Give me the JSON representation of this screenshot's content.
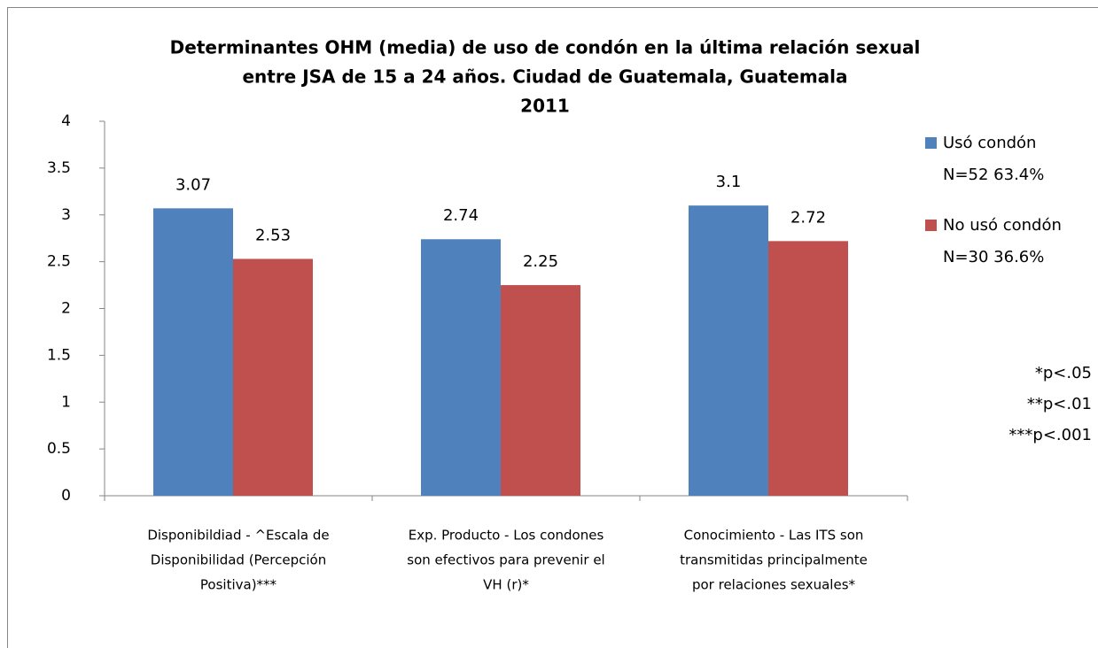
{
  "chart_data": {
    "type": "bar",
    "title": [
      "Determinantes OHM (media) de uso de condón en la última relación sexual",
      "entre JSA de 15 a 24 años. Ciudad de Guatemala, Guatemala",
      "2011"
    ],
    "categories": [
      [
        "Disponibildiad - ^Escala de",
        "Disponibilidad (Percepción",
        "Positiva)***"
      ],
      [
        "Exp. Producto - Los condones",
        "son efectivos para prevenir el",
        "VH (r)*"
      ],
      [
        "Conocimiento - Las ITS son",
        "transmitidas principalmente",
        "por relaciones sexuales*"
      ]
    ],
    "series": [
      {
        "name": [
          "Usó condón",
          "N=52 63.4%"
        ],
        "color": "#4f81bd",
        "values": [
          3.07,
          2.74,
          3.1
        ]
      },
      {
        "name": [
          "No usó condón",
          "N=30 36.6%"
        ],
        "color": "#c0504d",
        "values": [
          2.53,
          2.25,
          2.72
        ]
      }
    ],
    "ylim": [
      0,
      4
    ],
    "yticks": [
      0,
      0.5,
      1,
      1.5,
      2,
      2.5,
      3,
      3.5,
      4
    ],
    "grid": false,
    "legend": "right",
    "annotations": [
      "*p<.05",
      "**p<.01",
      "***p<.001"
    ]
  }
}
